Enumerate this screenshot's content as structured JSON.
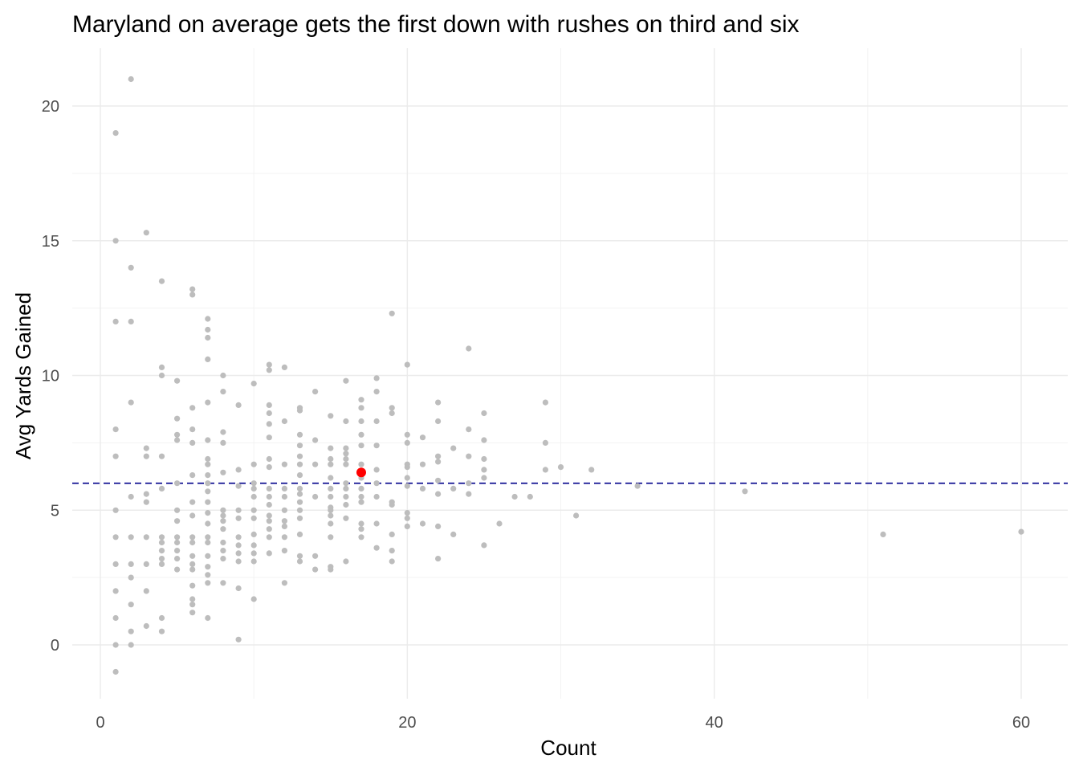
{
  "chart_data": {
    "type": "scatter",
    "title": "Maryland on average gets the first down with rushes on third and six",
    "xlabel": "Count",
    "ylabel": "Avg Yards Gained",
    "xlim": [
      -2,
      62
    ],
    "ylim": [
      -2,
      22
    ],
    "x_ticks": [
      0,
      20,
      40,
      60
    ],
    "y_ticks": [
      0,
      5,
      10,
      15,
      20
    ],
    "grid": true,
    "reference_line": {
      "y": 6,
      "style": "dashed",
      "color": "#00008B"
    },
    "colors": {
      "points": "#bdbdbd",
      "highlight": "#ff0000",
      "reference_line": "#00008B"
    },
    "highlight": {
      "x": 17,
      "y": 6.4
    },
    "series": [
      {
        "points": [
          [
            1,
            19
          ],
          [
            1,
            15
          ],
          [
            1,
            12
          ],
          [
            1,
            8
          ],
          [
            1,
            7
          ],
          [
            1,
            5
          ],
          [
            1,
            4
          ],
          [
            1,
            3
          ],
          [
            1,
            2
          ],
          [
            1,
            1
          ],
          [
            1,
            0
          ],
          [
            1,
            -1
          ],
          [
            2,
            21
          ],
          [
            2,
            14
          ],
          [
            2,
            12
          ],
          [
            2,
            9
          ],
          [
            2,
            5.5
          ],
          [
            2,
            4
          ],
          [
            2,
            3
          ],
          [
            2,
            2.5
          ],
          [
            2,
            1.5
          ],
          [
            2,
            0.5
          ],
          [
            2,
            0
          ],
          [
            3,
            15.3
          ],
          [
            3,
            7.3
          ],
          [
            3,
            7
          ],
          [
            3,
            5.6
          ],
          [
            3,
            5.3
          ],
          [
            3,
            4
          ],
          [
            3,
            3
          ],
          [
            3,
            2
          ],
          [
            3,
            0.7
          ],
          [
            4,
            13.5
          ],
          [
            4,
            10.3
          ],
          [
            4,
            10
          ],
          [
            4,
            7
          ],
          [
            4,
            5.8
          ],
          [
            4,
            4
          ],
          [
            4,
            3.8
          ],
          [
            4,
            3.5
          ],
          [
            4,
            3.2
          ],
          [
            4,
            3
          ],
          [
            4,
            1
          ],
          [
            4,
            0.5
          ],
          [
            5,
            9.8
          ],
          [
            5,
            8.4
          ],
          [
            5,
            7.8
          ],
          [
            5,
            7.6
          ],
          [
            5,
            6
          ],
          [
            5,
            5
          ],
          [
            5,
            4.6
          ],
          [
            5,
            4
          ],
          [
            5,
            3.8
          ],
          [
            5,
            3.5
          ],
          [
            5,
            3.2
          ],
          [
            5,
            2.8
          ],
          [
            6,
            13.2
          ],
          [
            6,
            13
          ],
          [
            6,
            8.8
          ],
          [
            6,
            8
          ],
          [
            6,
            7.5
          ],
          [
            6,
            6.3
          ],
          [
            6,
            5.3
          ],
          [
            6,
            4.8
          ],
          [
            6,
            4
          ],
          [
            6,
            3.8
          ],
          [
            6,
            3.3
          ],
          [
            6,
            3
          ],
          [
            6,
            2.8
          ],
          [
            6,
            2.2
          ],
          [
            6,
            1.7
          ],
          [
            6,
            1.5
          ],
          [
            6,
            1.2
          ],
          [
            7,
            12.1
          ],
          [
            7,
            11.7
          ],
          [
            7,
            11.4
          ],
          [
            7,
            10.6
          ],
          [
            7,
            9
          ],
          [
            7,
            7.6
          ],
          [
            7,
            6.9
          ],
          [
            7,
            6.7
          ],
          [
            7,
            6.3
          ],
          [
            7,
            6
          ],
          [
            7,
            5.7
          ],
          [
            7,
            5.3
          ],
          [
            7,
            4.9
          ],
          [
            7,
            4.5
          ],
          [
            7,
            4
          ],
          [
            7,
            3.8
          ],
          [
            7,
            3.3
          ],
          [
            7,
            2.9
          ],
          [
            7,
            2.6
          ],
          [
            7,
            2.3
          ],
          [
            7,
            1
          ],
          [
            8,
            10
          ],
          [
            8,
            9.4
          ],
          [
            8,
            7.9
          ],
          [
            8,
            7.5
          ],
          [
            8,
            6.4
          ],
          [
            8,
            5
          ],
          [
            8,
            4.8
          ],
          [
            8,
            4.6
          ],
          [
            8,
            4.3
          ],
          [
            8,
            3.8
          ],
          [
            8,
            3.5
          ],
          [
            8,
            3.2
          ],
          [
            8,
            2.3
          ],
          [
            9,
            8.9
          ],
          [
            9,
            6.5
          ],
          [
            9,
            5.9
          ],
          [
            9,
            5
          ],
          [
            9,
            4.7
          ],
          [
            9,
            4
          ],
          [
            9,
            3.7
          ],
          [
            9,
            3.4
          ],
          [
            9,
            3.1
          ],
          [
            9,
            2.1
          ],
          [
            9,
            0.2
          ],
          [
            10,
            9.7
          ],
          [
            10,
            6.7
          ],
          [
            10,
            6
          ],
          [
            10,
            5.8
          ],
          [
            10,
            5.5
          ],
          [
            10,
            5
          ],
          [
            10,
            4.7
          ],
          [
            10,
            4.1
          ],
          [
            10,
            3.7
          ],
          [
            10,
            3.4
          ],
          [
            10,
            3.1
          ],
          [
            10,
            1.7
          ],
          [
            11,
            10.4
          ],
          [
            11,
            10.2
          ],
          [
            11,
            8.9
          ],
          [
            11,
            8.6
          ],
          [
            11,
            8.2
          ],
          [
            11,
            7.7
          ],
          [
            11,
            6.9
          ],
          [
            11,
            6.6
          ],
          [
            11,
            5.8
          ],
          [
            11,
            5.5
          ],
          [
            11,
            5.2
          ],
          [
            11,
            4.8
          ],
          [
            11,
            4.6
          ],
          [
            11,
            4.3
          ],
          [
            11,
            4
          ],
          [
            11,
            3.4
          ],
          [
            12,
            10.3
          ],
          [
            12,
            8.3
          ],
          [
            12,
            6.7
          ],
          [
            12,
            5.8
          ],
          [
            12,
            5.5
          ],
          [
            12,
            5
          ],
          [
            12,
            4.6
          ],
          [
            12,
            4.4
          ],
          [
            12,
            4
          ],
          [
            12,
            3.5
          ],
          [
            12,
            2.3
          ],
          [
            13,
            8.8
          ],
          [
            13,
            8.7
          ],
          [
            13,
            7.8
          ],
          [
            13,
            7.4
          ],
          [
            13,
            7
          ],
          [
            13,
            6.7
          ],
          [
            13,
            6.3
          ],
          [
            13,
            5.8
          ],
          [
            13,
            5.6
          ],
          [
            13,
            5.3
          ],
          [
            13,
            5
          ],
          [
            13,
            4.7
          ],
          [
            13,
            4.1
          ],
          [
            13,
            3.3
          ],
          [
            13,
            3.1
          ],
          [
            14,
            9.4
          ],
          [
            14,
            7.6
          ],
          [
            14,
            6.7
          ],
          [
            14,
            5.5
          ],
          [
            14,
            3.3
          ],
          [
            14,
            2.8
          ],
          [
            15,
            8.5
          ],
          [
            15,
            7.3
          ],
          [
            15,
            6.9
          ],
          [
            15,
            6.7
          ],
          [
            15,
            6.2
          ],
          [
            15,
            5.8
          ],
          [
            15,
            5.5
          ],
          [
            15,
            5.1
          ],
          [
            15,
            5
          ],
          [
            15,
            4.8
          ],
          [
            15,
            4.5
          ],
          [
            15,
            4
          ],
          [
            15,
            2.9
          ],
          [
            15,
            2.8
          ],
          [
            16,
            9.8
          ],
          [
            16,
            8.3
          ],
          [
            16,
            7.3
          ],
          [
            16,
            7.1
          ],
          [
            16,
            6.9
          ],
          [
            16,
            6.7
          ],
          [
            16,
            6
          ],
          [
            16,
            5.8
          ],
          [
            16,
            5.5
          ],
          [
            16,
            5.2
          ],
          [
            16,
            4.7
          ],
          [
            16,
            3.1
          ],
          [
            17,
            9.1
          ],
          [
            17,
            8.8
          ],
          [
            17,
            8.3
          ],
          [
            17,
            7.8
          ],
          [
            17,
            7.4
          ],
          [
            17,
            6.7
          ],
          [
            17,
            6.2
          ],
          [
            17,
            5.8
          ],
          [
            17,
            5.5
          ],
          [
            17,
            5.3
          ],
          [
            17,
            4.5
          ],
          [
            17,
            4.3
          ],
          [
            17,
            4
          ],
          [
            18,
            9.9
          ],
          [
            18,
            9.4
          ],
          [
            18,
            8.3
          ],
          [
            18,
            7.4
          ],
          [
            18,
            6.5
          ],
          [
            18,
            6
          ],
          [
            18,
            5.5
          ],
          [
            18,
            4.5
          ],
          [
            18,
            3.6
          ],
          [
            19,
            12.3
          ],
          [
            19,
            8.8
          ],
          [
            19,
            8.6
          ],
          [
            19,
            5.3
          ],
          [
            19,
            5.2
          ],
          [
            19,
            4.1
          ],
          [
            19,
            3.5
          ],
          [
            19,
            3.1
          ],
          [
            20,
            10.4
          ],
          [
            20,
            7.8
          ],
          [
            20,
            7.5
          ],
          [
            20,
            6.7
          ],
          [
            20,
            6.6
          ],
          [
            20,
            6.2
          ],
          [
            20,
            5.9
          ],
          [
            20,
            4.9
          ],
          [
            20,
            4.7
          ],
          [
            20,
            4.4
          ],
          [
            21,
            7.7
          ],
          [
            21,
            6.7
          ],
          [
            21,
            5.8
          ],
          [
            21,
            4.5
          ],
          [
            22,
            9
          ],
          [
            22,
            8.3
          ],
          [
            22,
            7
          ],
          [
            22,
            6.8
          ],
          [
            22,
            6.1
          ],
          [
            22,
            5.6
          ],
          [
            22,
            4.4
          ],
          [
            22,
            3.2
          ],
          [
            23,
            7.3
          ],
          [
            23,
            5.8
          ],
          [
            23,
            4.1
          ],
          [
            24,
            11
          ],
          [
            24,
            8
          ],
          [
            24,
            7
          ],
          [
            24,
            6
          ],
          [
            24,
            5.6
          ],
          [
            25,
            8.6
          ],
          [
            25,
            7.6
          ],
          [
            25,
            6.9
          ],
          [
            25,
            6.5
          ],
          [
            25,
            6.2
          ],
          [
            25,
            3.7
          ],
          [
            26,
            4.5
          ],
          [
            27,
            5.5
          ],
          [
            28,
            5.5
          ],
          [
            29,
            9
          ],
          [
            29,
            7.5
          ],
          [
            29,
            6.5
          ],
          [
            30,
            6.6
          ],
          [
            31,
            4.8
          ],
          [
            32,
            6.5
          ],
          [
            35,
            5.9
          ],
          [
            42,
            5.7
          ],
          [
            51,
            4.1
          ],
          [
            60,
            4.2
          ]
        ]
      }
    ]
  }
}
